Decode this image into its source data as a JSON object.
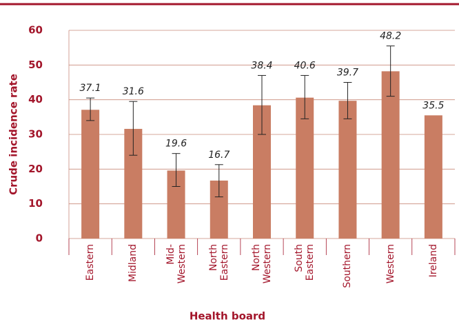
{
  "chart_data": {
    "type": "bar",
    "categories": [
      "Eastern",
      "Midland",
      "Mid-Western",
      "North Eastern",
      "North Western",
      "South Eastern",
      "Southern",
      "Western",
      "Ireland"
    ],
    "values": [
      37.1,
      31.6,
      19.6,
      16.7,
      38.4,
      40.6,
      39.7,
      48.2,
      35.5
    ],
    "error_bars": [
      {
        "low": 34,
        "high": 40.5
      },
      {
        "low": 24,
        "high": 39.5
      },
      {
        "low": 15,
        "high": 24.5
      },
      {
        "low": 12,
        "high": 21.3
      },
      {
        "low": 30,
        "high": 47
      },
      {
        "low": 34.5,
        "high": 47
      },
      {
        "low": 34.5,
        "high": 45
      },
      {
        "low": 41,
        "high": 55.5
      },
      null
    ],
    "color": "#c97d63",
    "ylim": [
      0,
      60
    ],
    "yticks": [
      0,
      10,
      20,
      30,
      40,
      50,
      60
    ],
    "grid": true,
    "x_label": "Health board",
    "y_label": "Crude incidence rate"
  }
}
